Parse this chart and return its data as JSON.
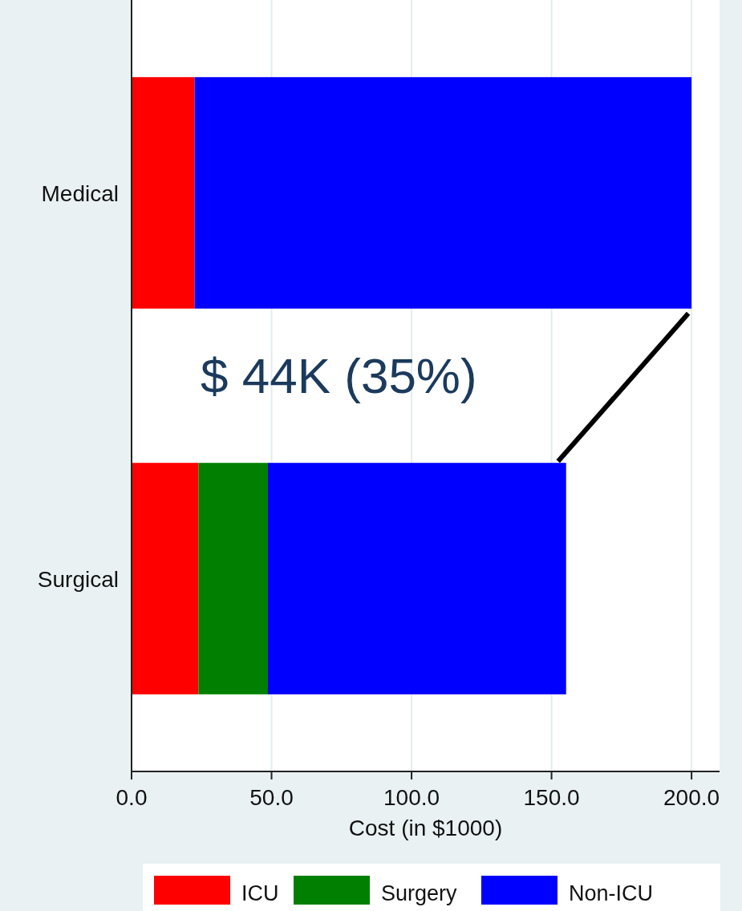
{
  "chart_data": {
    "type": "bar",
    "orientation": "horizontal",
    "stacked": true,
    "categories": [
      "Medical",
      "Surgical"
    ],
    "series": [
      {
        "name": "ICU",
        "color": "#ff0000",
        "values": [
          22.5,
          23.9
        ]
      },
      {
        "name": "Surgery",
        "color": "#007f00",
        "values": [
          0,
          24.8
        ]
      },
      {
        "name": "Non-ICU",
        "color": "#0000ff",
        "values": [
          177.5,
          106.5
        ]
      }
    ],
    "xlabel": "Cost (in $1000)",
    "xlim": [
      0,
      210
    ],
    "xticks": [
      {
        "value": 0,
        "label": "0.0"
      },
      {
        "value": 50,
        "label": "50.0"
      },
      {
        "value": 100,
        "label": "100.0"
      },
      {
        "value": 150,
        "label": "150.0"
      },
      {
        "value": 200,
        "label": "200.0"
      }
    ],
    "grid": "x",
    "legend": "bottom",
    "annotations": [
      "$ 44K (35%)"
    ]
  }
}
